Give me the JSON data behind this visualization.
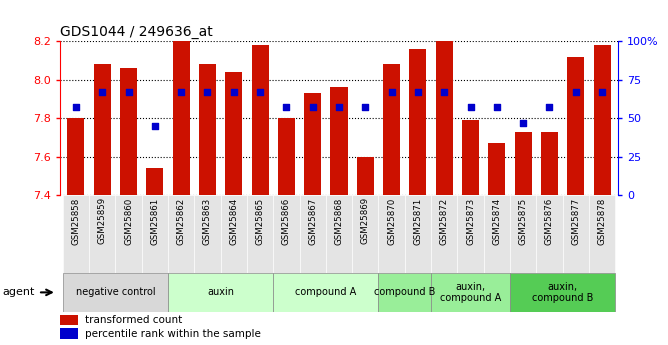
{
  "title": "GDS1044 / 249636_at",
  "samples": [
    "GSM25858",
    "GSM25859",
    "GSM25860",
    "GSM25861",
    "GSM25862",
    "GSM25863",
    "GSM25864",
    "GSM25865",
    "GSM25866",
    "GSM25867",
    "GSM25868",
    "GSM25869",
    "GSM25870",
    "GSM25871",
    "GSM25872",
    "GSM25873",
    "GSM25874",
    "GSM25875",
    "GSM25876",
    "GSM25877",
    "GSM25878"
  ],
  "bar_values": [
    7.8,
    8.08,
    8.06,
    7.54,
    8.2,
    8.08,
    8.04,
    8.18,
    7.8,
    7.93,
    7.96,
    7.6,
    8.08,
    8.16,
    8.2,
    7.79,
    7.67,
    7.73,
    7.73,
    8.12,
    8.18
  ],
  "percentile_values": [
    57,
    67,
    67,
    45,
    67,
    67,
    67,
    67,
    57,
    57,
    57,
    57,
    67,
    67,
    67,
    57,
    57,
    47,
    57,
    67,
    67
  ],
  "bar_color": "#cc1100",
  "dot_color": "#0000cc",
  "ymin": 7.4,
  "ymax": 8.2,
  "y2min": 0,
  "y2max": 100,
  "yticks": [
    7.4,
    7.6,
    7.8,
    8.0,
    8.2
  ],
  "y2ticks": [
    0,
    25,
    50,
    75,
    100
  ],
  "groups": [
    {
      "label": "negative control",
      "start": 0,
      "end": 4,
      "color": "#d8d8d8"
    },
    {
      "label": "auxin",
      "start": 4,
      "end": 8,
      "color": "#ccffcc"
    },
    {
      "label": "compound A",
      "start": 8,
      "end": 12,
      "color": "#ccffcc"
    },
    {
      "label": "compound B",
      "start": 12,
      "end": 14,
      "color": "#99ee99"
    },
    {
      "label": "auxin,\ncompound A",
      "start": 14,
      "end": 17,
      "color": "#99ee99"
    },
    {
      "label": "auxin,\ncompound B",
      "start": 17,
      "end": 21,
      "color": "#55cc55"
    }
  ],
  "legend_items": [
    {
      "label": "transformed count",
      "color": "#cc1100"
    },
    {
      "label": "percentile rank within the sample",
      "color": "#0000cc"
    }
  ],
  "agent_label": "agent"
}
